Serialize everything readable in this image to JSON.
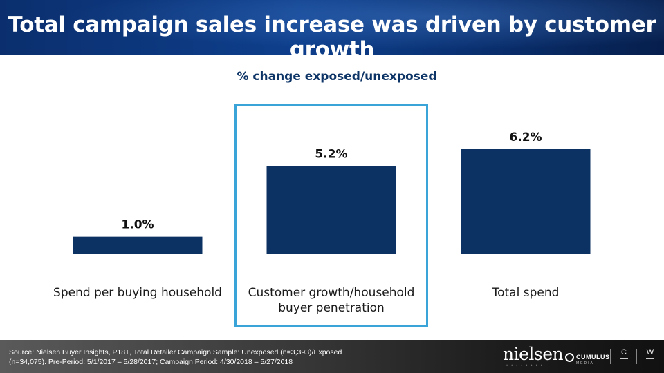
{
  "header": {
    "title": "Total campaign sales increase was driven by customer growth"
  },
  "chart_data": {
    "type": "bar",
    "title": "% change exposed/unexposed",
    "categories": [
      "Spend per buying household",
      "Customer growth/household buyer penetration",
      "Total spend"
    ],
    "category_lines": [
      [
        "Spend per buying household"
      ],
      [
        "Customer growth/household",
        "buyer penetration"
      ],
      [
        "Total spend"
      ]
    ],
    "values": [
      1.0,
      5.2,
      6.2
    ],
    "value_labels": [
      "1.0%",
      "5.2%",
      "6.2%"
    ],
    "highlighted_category": "Customer growth/household buyer penetration",
    "bar_color": "#0b3262",
    "highlight_color": "#3aa4d8",
    "ylim": [
      0,
      6.2
    ],
    "grid": false,
    "legend": "none"
  },
  "footer": {
    "source_line1": "Source: Nielsen Buyer Insights, P18+, Total Retailer Campaign Sample: Unexposed (n=3,393)/Exposed",
    "source_line2": "(n=34,075). Pre-Period: 5/1/2017 – 5/28/2017; Campaign Period: 4/30/2018 – 5/27/2018",
    "logos": {
      "nielsen": "nielsen",
      "cumulus": "CUMULUS",
      "cumulus_sub": "MEDIA",
      "logo3_mark": "C",
      "logo4_mark": "W"
    }
  }
}
